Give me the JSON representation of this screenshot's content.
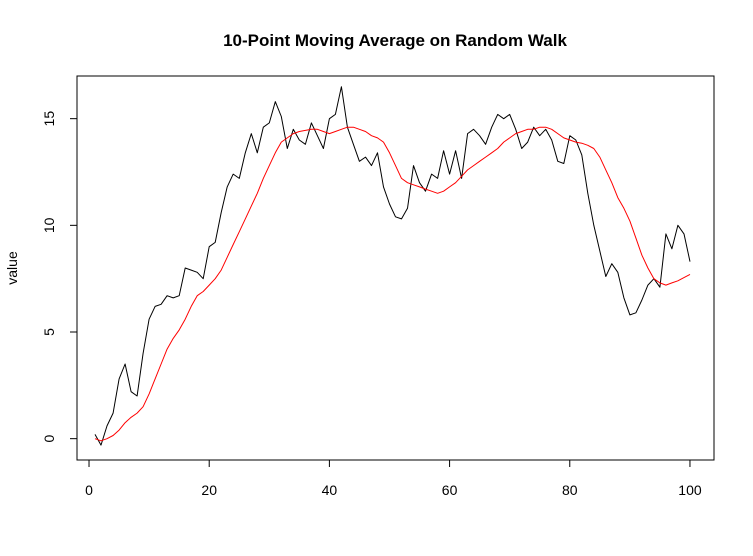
{
  "chart_data": {
    "type": "line",
    "title": "10-Point Moving Average on Random Walk",
    "xlabel": "",
    "ylabel": "value",
    "xlim": [
      -2,
      104
    ],
    "ylim": [
      -1,
      17
    ],
    "xticks": [
      0,
      20,
      40,
      60,
      80,
      100
    ],
    "yticks": [
      0,
      5,
      10,
      15
    ],
    "grid": false,
    "legend": "none",
    "series": [
      {
        "color": "#000000",
        "x": [
          1,
          2,
          3,
          4,
          5,
          6,
          7,
          8,
          9,
          10,
          11,
          12,
          13,
          14,
          15,
          16,
          17,
          18,
          19,
          20,
          21,
          22,
          23,
          24,
          25,
          26,
          27,
          28,
          29,
          30,
          31,
          32,
          33,
          34,
          35,
          36,
          37,
          38,
          39,
          40,
          41,
          42,
          43,
          44,
          45,
          46,
          47,
          48,
          49,
          50,
          51,
          52,
          53,
          54,
          55,
          56,
          57,
          58,
          59,
          60,
          61,
          62,
          63,
          64,
          65,
          66,
          67,
          68,
          69,
          70,
          71,
          72,
          73,
          74,
          75,
          76,
          77,
          78,
          79,
          80,
          81,
          82,
          83,
          84,
          85,
          86,
          87,
          88,
          89,
          90,
          91,
          92,
          93,
          94,
          95,
          96,
          97,
          98,
          99,
          100
        ],
        "y": [
          0.2,
          -0.3,
          0.6,
          1.2,
          2.8,
          3.5,
          2.2,
          2.0,
          4.0,
          5.6,
          6.2,
          6.3,
          6.7,
          6.6,
          6.7,
          8.0,
          7.9,
          7.8,
          7.5,
          9.0,
          9.2,
          10.6,
          11.8,
          12.4,
          12.2,
          13.4,
          14.3,
          13.4,
          14.6,
          14.8,
          15.8,
          15.1,
          13.6,
          14.5,
          14.0,
          13.8,
          14.8,
          14.2,
          13.6,
          15.0,
          15.2,
          16.5,
          14.6,
          13.8,
          13.0,
          13.2,
          12.8,
          13.4,
          11.8,
          11.0,
          10.4,
          10.3,
          10.8,
          12.8,
          12.0,
          11.6,
          12.4,
          12.2,
          13.5,
          12.4,
          13.5,
          12.2,
          14.3,
          14.5,
          14.2,
          13.8,
          14.6,
          15.2,
          15.0,
          15.2,
          14.5,
          13.6,
          13.9,
          14.6,
          14.2,
          14.5,
          14.0,
          13.0,
          12.9,
          14.2,
          14.0,
          13.3,
          11.5,
          10.0,
          8.8,
          7.6,
          8.2,
          7.8,
          6.6,
          5.8,
          5.9,
          6.5,
          7.2,
          7.5,
          7.1,
          9.6,
          8.9,
          10.0,
          9.6,
          8.3
        ]
      },
      {
        "color": "#ff0000",
        "x": [
          1,
          2,
          3,
          4,
          5,
          6,
          7,
          8,
          9,
          10,
          11,
          12,
          13,
          14,
          15,
          16,
          17,
          18,
          19,
          20,
          21,
          22,
          23,
          24,
          25,
          26,
          27,
          28,
          29,
          30,
          31,
          32,
          33,
          34,
          35,
          36,
          37,
          38,
          39,
          40,
          41,
          42,
          43,
          44,
          45,
          46,
          47,
          48,
          49,
          50,
          51,
          52,
          53,
          54,
          55,
          56,
          57,
          58,
          59,
          60,
          61,
          62,
          63,
          64,
          65,
          66,
          67,
          68,
          69,
          70,
          71,
          72,
          73,
          74,
          75,
          76,
          77,
          78,
          79,
          80,
          81,
          82,
          83,
          84,
          85,
          86,
          87,
          88,
          89,
          90,
          91,
          92,
          93,
          94,
          95,
          96,
          97,
          98,
          99,
          100
        ],
        "y": [
          0.0,
          -0.1,
          0.0,
          0.15,
          0.4,
          0.75,
          1.0,
          1.2,
          1.5,
          2.1,
          2.8,
          3.5,
          4.2,
          4.7,
          5.1,
          5.6,
          6.2,
          6.7,
          6.9,
          7.2,
          7.5,
          7.9,
          8.5,
          9.1,
          9.7,
          10.3,
          10.9,
          11.5,
          12.2,
          12.8,
          13.4,
          13.9,
          14.1,
          14.3,
          14.4,
          14.45,
          14.5,
          14.5,
          14.4,
          14.3,
          14.4,
          14.5,
          14.6,
          14.6,
          14.5,
          14.4,
          14.2,
          14.1,
          13.9,
          13.4,
          12.8,
          12.2,
          12.0,
          11.9,
          11.8,
          11.7,
          11.6,
          11.5,
          11.6,
          11.8,
          12.0,
          12.3,
          12.6,
          12.8,
          13.0,
          13.2,
          13.4,
          13.6,
          13.9,
          14.1,
          14.3,
          14.4,
          14.5,
          14.5,
          14.6,
          14.6,
          14.5,
          14.3,
          14.1,
          14.0,
          13.9,
          13.85,
          13.75,
          13.6,
          13.2,
          12.6,
          12.0,
          11.3,
          10.8,
          10.2,
          9.4,
          8.6,
          8.0,
          7.5,
          7.3,
          7.2,
          7.3,
          7.4,
          7.55,
          7.7
        ]
      }
    ]
  }
}
